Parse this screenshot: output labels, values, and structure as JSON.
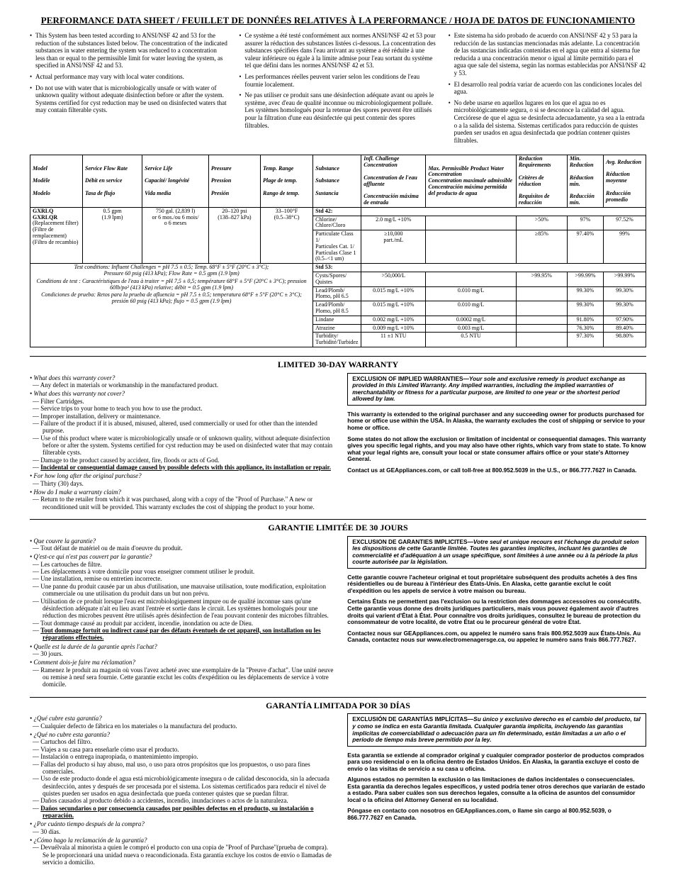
{
  "title": "PERFORMANCE DATA SHEET / FEUILLET DE DONNÉES RELATIVES À LA PERFORMANCE / HOJA DE DATOS DE FUNCIONAMIENTO",
  "intro": {
    "en": [
      "This System has been tested according to ANSI/NSF 42 and 53 for the reduction of the substances listed below. The concentration of the indicated substances in water entering the system was reduced to a concentration less than or equal to the permissible limit for water leaving the system, as specified in ANSI/NSF 42 and 53.",
      "Actual performance may vary with local water conditions.",
      "Do not use with water that is microbiologically unsafe or with water of unknown quality without adequate disinfection before or after the system. Systems certified for cyst reduction may be used on disinfected waters that may contain filterable cysts."
    ],
    "fr": [
      "Ce système a été testé conformément aux normes ANSI/NSF 42 et 53 pour assurer la réduction des substances listées ci-dessous. La concentration des substances spécifiées dans l'eau arrivant au système a été réduite à une valeur inférieure ou égale à la limite admise pour l'eau sortant du système tel que défini dans les normes ANSI/NSF 42 et 53.",
      "Les performances réelles peuvent varier selon les conditions de l'eau fournie localement.",
      "Ne pas utiliser ce produit sans une désinfection adéquate avant ou après le système, avec d'eau de qualité inconnue ou microbiologiquement polluée. Les systèmes homologués pour la retenue des spores peuvent être utilisés pour la filtration d'une eau désinfectée qui peut contenir des spores filtrables."
    ],
    "es": [
      "Este sistema ha sido probado de acuerdo con ANSI/NSF 42 y 53 para la reducción de las sustancias mencionadas más adelante. La concentración de las sustancias indicadas contenidas en el agua que entra al sistema fue reducida a una concentración menor o igual al límite permitido para el agua que sale del sistema, según las normas establecidas por ANSI/NSF 42 y 53.",
      "El desarrollo real podría variar de acuerdo con las condiciones locales del agua.",
      "No debe usarse en aquellos lugares en los que el agua no es microbiológicamente segura, o si se desconoce la calidad del agua. Cerciórese de que el agua se desinfecta adecuadamente, ya sea a la entrada o a la salida del sistema. Sistemas certificados para reducción de quistes pueden ser usados en agua desinfectada que podrían contener quistes filtrables."
    ]
  },
  "table": {
    "headers": {
      "model": [
        "Model",
        "Modèle",
        "Modelo"
      ],
      "flow": [
        "Service Flow Rate",
        "Débit en service",
        "Tasa de flujo"
      ],
      "life": [
        "Service Life",
        "Capacité/ longévité",
        "Vida media"
      ],
      "pressure": [
        "Pressure",
        "Pression",
        "Presión"
      ],
      "temp": [
        "Temp. Range",
        "Plage de temp.",
        "Rango de temp."
      ],
      "substance": [
        "Substance",
        "Substance",
        "Sustancia"
      ],
      "infl": [
        "Infl. Challenge Concentration",
        "Concentration de l'eau affluente",
        "Concentración máxima de entrada"
      ],
      "max": [
        "Max. Permissible Product Water Concentration",
        "Concentration maximale admissible",
        "Concentración máxima permitida del producto de agua"
      ],
      "redreq": [
        "Reduction Requirements",
        "Critères de réduction",
        "Requisitos de reducción"
      ],
      "min": [
        "Min. Reduction",
        "Réduction min.",
        "Reducción mín."
      ],
      "avg": [
        "Avg. Reduction",
        "Réduction moyenne",
        "Reducción promedio"
      ]
    },
    "left": {
      "models": "GXRLQ\nGXRLQR",
      "models_sub": "(Replacement filter)\n(Filtre de remplacement)\n(Filtro de recambio)",
      "flow": "0.5 gpm\n(1.9 lpm)",
      "life": "750 gal. (2,839 l)\nor 6 mos./ou 6 mois/\no 6 meses",
      "pressure": "20–120 psi\n(138–827 kPa)",
      "temp": "33–100°F\n(0.5–38°C)"
    },
    "test_conditions": [
      "Test conditions: Influent Challenges = pH 7.5 ± 0.5; Temp. 68°F ± 5°F (20°C ± 3°C);",
      "Pressure 60 psig (413 kPa); Flow Rate = 0.5 gpm (1.9 lpm)",
      "Conditions de test : Caractéristiques de l'eau à traiter = pH 7,5 ± 0,5; température 68°F ± 5°F (20°C ± 3°C); pression 60lb/po² (413 kPa) relative; débit = 0.5 gpm (1.9 lpm)",
      "Condiciones de prueba: Retos para la prueba de afluencia = pH 7.5 ± 0.5; temperatura 68°F ± 5°F (20°C ± 3°C); presión 60 psig (413 kPa); flujo = 0.5 gpm (1.9 lpm)"
    ],
    "rows": [
      {
        "sub": "Std 42:",
        "b": true
      },
      {
        "sub": "Chlorine/\nChlore/Cloro",
        "infl": "2.0 mg/L +10%",
        "max": "",
        "req": ">50%",
        "min": "97%",
        "avg": "97.52%"
      },
      {
        "sub": "Particulate Class 1/\nParticules Cat. 1/\nPartículas Clase 1\n(0.5–<1 um)",
        "infl": "≥10,000\npart./mL",
        "max": "",
        "req": "≥85%",
        "min": "97.40%",
        "avg": "99%"
      },
      {
        "sub": "Std 53:",
        "b": true
      },
      {
        "sub": "Cysts/Spores/\nQuistes",
        "infl": ">50,000/L",
        "max": "",
        "req": ">99.95%",
        "min": ">99.99%",
        "avg": ">99.99%"
      },
      {
        "sub": "Lead/Plomb/\nPlomo, pH 6.5",
        "infl": "0.015 mg/L +10%",
        "max": "0.010 mg/L",
        "req": "",
        "min": "99.30%",
        "avg": "99.30%"
      },
      {
        "sub": "Lead/Plomb/\nPlomo, pH 8.5",
        "infl": "0.015 mg/L +10%",
        "max": "0.010 mg/L",
        "req": "",
        "min": "99.30%",
        "avg": "99.30%"
      },
      {
        "sub": "Lindane",
        "infl": "0.002 mg/L +10%",
        "max": "0.0002 mg/L",
        "req": "",
        "min": "91.80%",
        "avg": "97.90%"
      },
      {
        "sub": "Atrazine",
        "infl": "0.009 mg/L +10%",
        "max": "0.003 mg/L",
        "req": "",
        "min": "76.30%",
        "avg": "89.40%"
      },
      {
        "sub": "Turbidity/\nTurbidité/Turbidez",
        "infl": "11 ±1 NTU",
        "max": "0.5 NTU",
        "req": "",
        "min": "97.30%",
        "avg": "98.80%"
      }
    ]
  },
  "warranty_en": {
    "title": "LIMITED 30-DAY WARRANTY",
    "q1": "What does this warranty cover?",
    "a1": [
      "Any defect in materials or workmanship in the manufactured product."
    ],
    "q2": "What does this warranty not cover?",
    "a2": [
      "Filter Cartridges.",
      "Service trips to your home to teach you how to use the product.",
      "Improper installation, delivery or maintenance.",
      "Failure of the product if it is abused, misused, altered, used commercially or used for other than the intended purpose.",
      "Use of this product where water is microbiologically unsafe or of unknown quality, without adequate disinfection before or after the system. Systems certified for cyst reduction may be used on disinfected water that may contain filterable cysts.",
      "Damage to the product caused by accident, fire, floods or acts of God.",
      "Incidental or consequential damage caused by possible defects with this appliance, its installation or repair."
    ],
    "q3": "For how long after the original purchase?",
    "a3": [
      "Thirty (30) days."
    ],
    "q4": "How do I make a warranty claim?",
    "a4": [
      "Return to the retailer from which it was purchased, along with a copy of the \"Proof of Purchase.\" A new or reconditioned unit will be provided. This warranty excludes the cost of shipping the product to your home."
    ],
    "excl_lead": "EXCLUSION OF IMPLIED WARRANTIES",
    "excl_body": "—Your sole and exclusive remedy is product exchange as provided in this Limited Warranty. Any implied warranties, including the implied warranties of merchantability or fitness for a particular purpose, are limited to one year or the shortest period allowed by law.",
    "p1": "This warranty is extended to the original purchaser and any succeeding owner for products purchased for home or office use within the USA. In Alaska, the warranty excludes the cost of shipping or service to your home or office.",
    "p2": "Some states do not allow the exclusion or limitation of incidental or consequential damages. This warranty gives you specific legal rights, and you may also have other rights, which vary from state to state. To know what your legal rights are, consult your local or state consumer affairs office or your state's Attorney General.",
    "p3": "Contact us at GEAppliances.com, or call toll-free at 800.952.5039 in the U.S., or 866.777.7627 in Canada."
  },
  "warranty_fr": {
    "title": "GARANTIE LIMITÉE DE 30 JOURS",
    "q1": "Que couvre la garantie?",
    "a1": [
      "Tout défaut de matériel ou de main d'oeuvre du produit."
    ],
    "q2": "Q'est-ce qui n'est pas couvert par la garantie?",
    "a2": [
      "Les cartouches de filtre.",
      "Les déplacements à votre domicile pour vous enseigner comment utiliser le produit.",
      "Une installation, remise ou entretien incorrecte.",
      "Une panne du produit causée par un abus d'utilisation, une mauvaise utilisation, toute modification, exploitation commerciale ou une utilisation du produit dans un but non prévu.",
      "Utilisation de ce produit lorsque l'eau est microbiologiquement impure ou de qualité inconnue sans qu'une désinfection adéquate n'ait eu lieu avant l'entrée et sortie dans le circuit. Les systèmes homologués pour une réduction des microbes peuvent être utilisés après désinfection de l'eau pouvant contenir des microbes filtrables.",
      "Tout dommage causé au produit par accident, incendie, inondation ou acte de Dieu.",
      "Tout dommage fortuit ou indirect causé par des défauts éventuels de cet appareil, son installation ou les réparations effectuées."
    ],
    "q3": "Quelle est la durée de la garantie après l'achat?",
    "a3": [
      "30 jours."
    ],
    "q4": "Comment dois-je faire ma réclamation?",
    "a4": [
      "Ramenez le produit au magasin où vous l'avez acheté avec une exemplaire de la \"Preuve d'achat\". Une unité neuve ou remise à neuf sera fournie. Cette garantie exclut les coûts d'expédition ou les déplacements de service à votre domicile."
    ],
    "excl_lead": "EXCLUSION DE GARANTIES IMPLICITES",
    "excl_body": "—Votre seul et unique recours est l'échange du produit selon les dispositions de cette Garantie limitée. Toutes les garanties implicites, incluant les garanties de commercialité et d'adéquation à un usage spécifique, sont limitées à une année ou à la période la plus courte autorisée par la législation.",
    "p1": "Cette garantie couvre l'acheteur original et tout propriétaire subséquent des produits achetés à des fins résidentielles ou de bureau à l'intérieur des États-Unis. En Alaska, cette garantie exclut le coût d'expédition ou les appels de service à votre maison ou bureau.",
    "p2": "Certains États ne permettent pas l'exclusion ou la restriction des dommages accessoires ou consécutifs. Cette garantie vous donne des droits juridiques particuliers, mais vous pouvez également avoir d'autres droits qui varient d'État à État. Pour connaître vos droits juridiques, consultez le bureau de protection du consommateur de votre localité, de votre État ou le procureur général de votre État.",
    "p3": "Contactez nous sur GEAppliances.com, ou appelez le numéro sans frais 800.952.5039 aux États-Unis. Au Canada, contactez nous sur www.electromenagersge.ca, ou appelez le numéro sans frais 866.777.7627."
  },
  "warranty_es": {
    "title": "GARANTÍA LIMITADA POR 30 DÍAS",
    "q1": "¿Qué cubre esta garantía?",
    "a1": [
      "Cualquier defecto de fábrica en los materiales o la manufactura del producto."
    ],
    "q2": "¿Qué no cubre esta garantía?",
    "a2": [
      "Cartuchos del filtro.",
      "Viajes a su casa para enseñarle cómo usar el producto.",
      "Instalación o entrega inapropiada, o mantenimiento impropio.",
      "Fallas del producto si hay abuso, mal uso, o uso para otros propósitos que los propuestos, o uso para fines comerciales.",
      "Uso de este producto donde el agua está microbiológicamente insegura o de calidad desconocida, sin la adecuada desinfección, antes y después de ser procesada por el sistema. Los sistemas certificados para reducir el nivel de quistes pueden ser usados en agua desinfectada que pueda contener quistes que se puedan filtrar.",
      "Daños causados al producto debido a accidentes, incendio, inundaciones o actos de la naturaleza.",
      "Daños secundarios o por consecuencia causados por posibles defectos en el producto, su instalación o reparación."
    ],
    "q3": "¿Por cuánto tiempo después de la compra?",
    "a3": [
      "30 días."
    ],
    "q4": "¿Cómo hago la reclamación de la garantía?",
    "a4": [
      "Devuélvala al minorista a quien le compró el producto con una copia de \"Proof of Purchase\"(prueba de compra). Se le proporcionará una unidad nueva o reacondicionada. Esta garantía excluye los costos de envío o llamadas de servicio a domicilio."
    ],
    "excl_lead": "EXCLUSIÓN DE GARANTÍAS IMPLÍCITAS",
    "excl_body": "—Su único y exclusivo derecho es el cambio del producto, tal y como se indica en esta Garantía limitada. Cualquier garantía implícita, incluyendo las garantías implícitas de comerciabilidad o adecuación para un fin determinado, están limitadas a un año o el período de tiempo más breve permitido por la ley.",
    "p1": "Esta garantía se extiende al comprador original y cualquier comprador posterior de productos comprados para uso residencial o en la oficina dentro de Estados Unidos. En Alaska, la garantía excluye el costo de envío o las visitas de servicio a su casa u oficina.",
    "p2": "Algunos estados no permiten la exclusión o las limitaciones de daños incidentales o consecuenciales. Esta garantía da derechos legales específicos, y usted podría tener otros derechos que variarán de estado a estado. Para saber cuáles son sus derechos legales, consulte a la oficina de asuntos del consumidor local o la oficina del Attorney General en su localidad.",
    "p3": "Póngase en contacto con nosotros en GEAppliances.com, o llame sin cargo al 800.952.5039, o 866.777.7627 en Canada."
  }
}
